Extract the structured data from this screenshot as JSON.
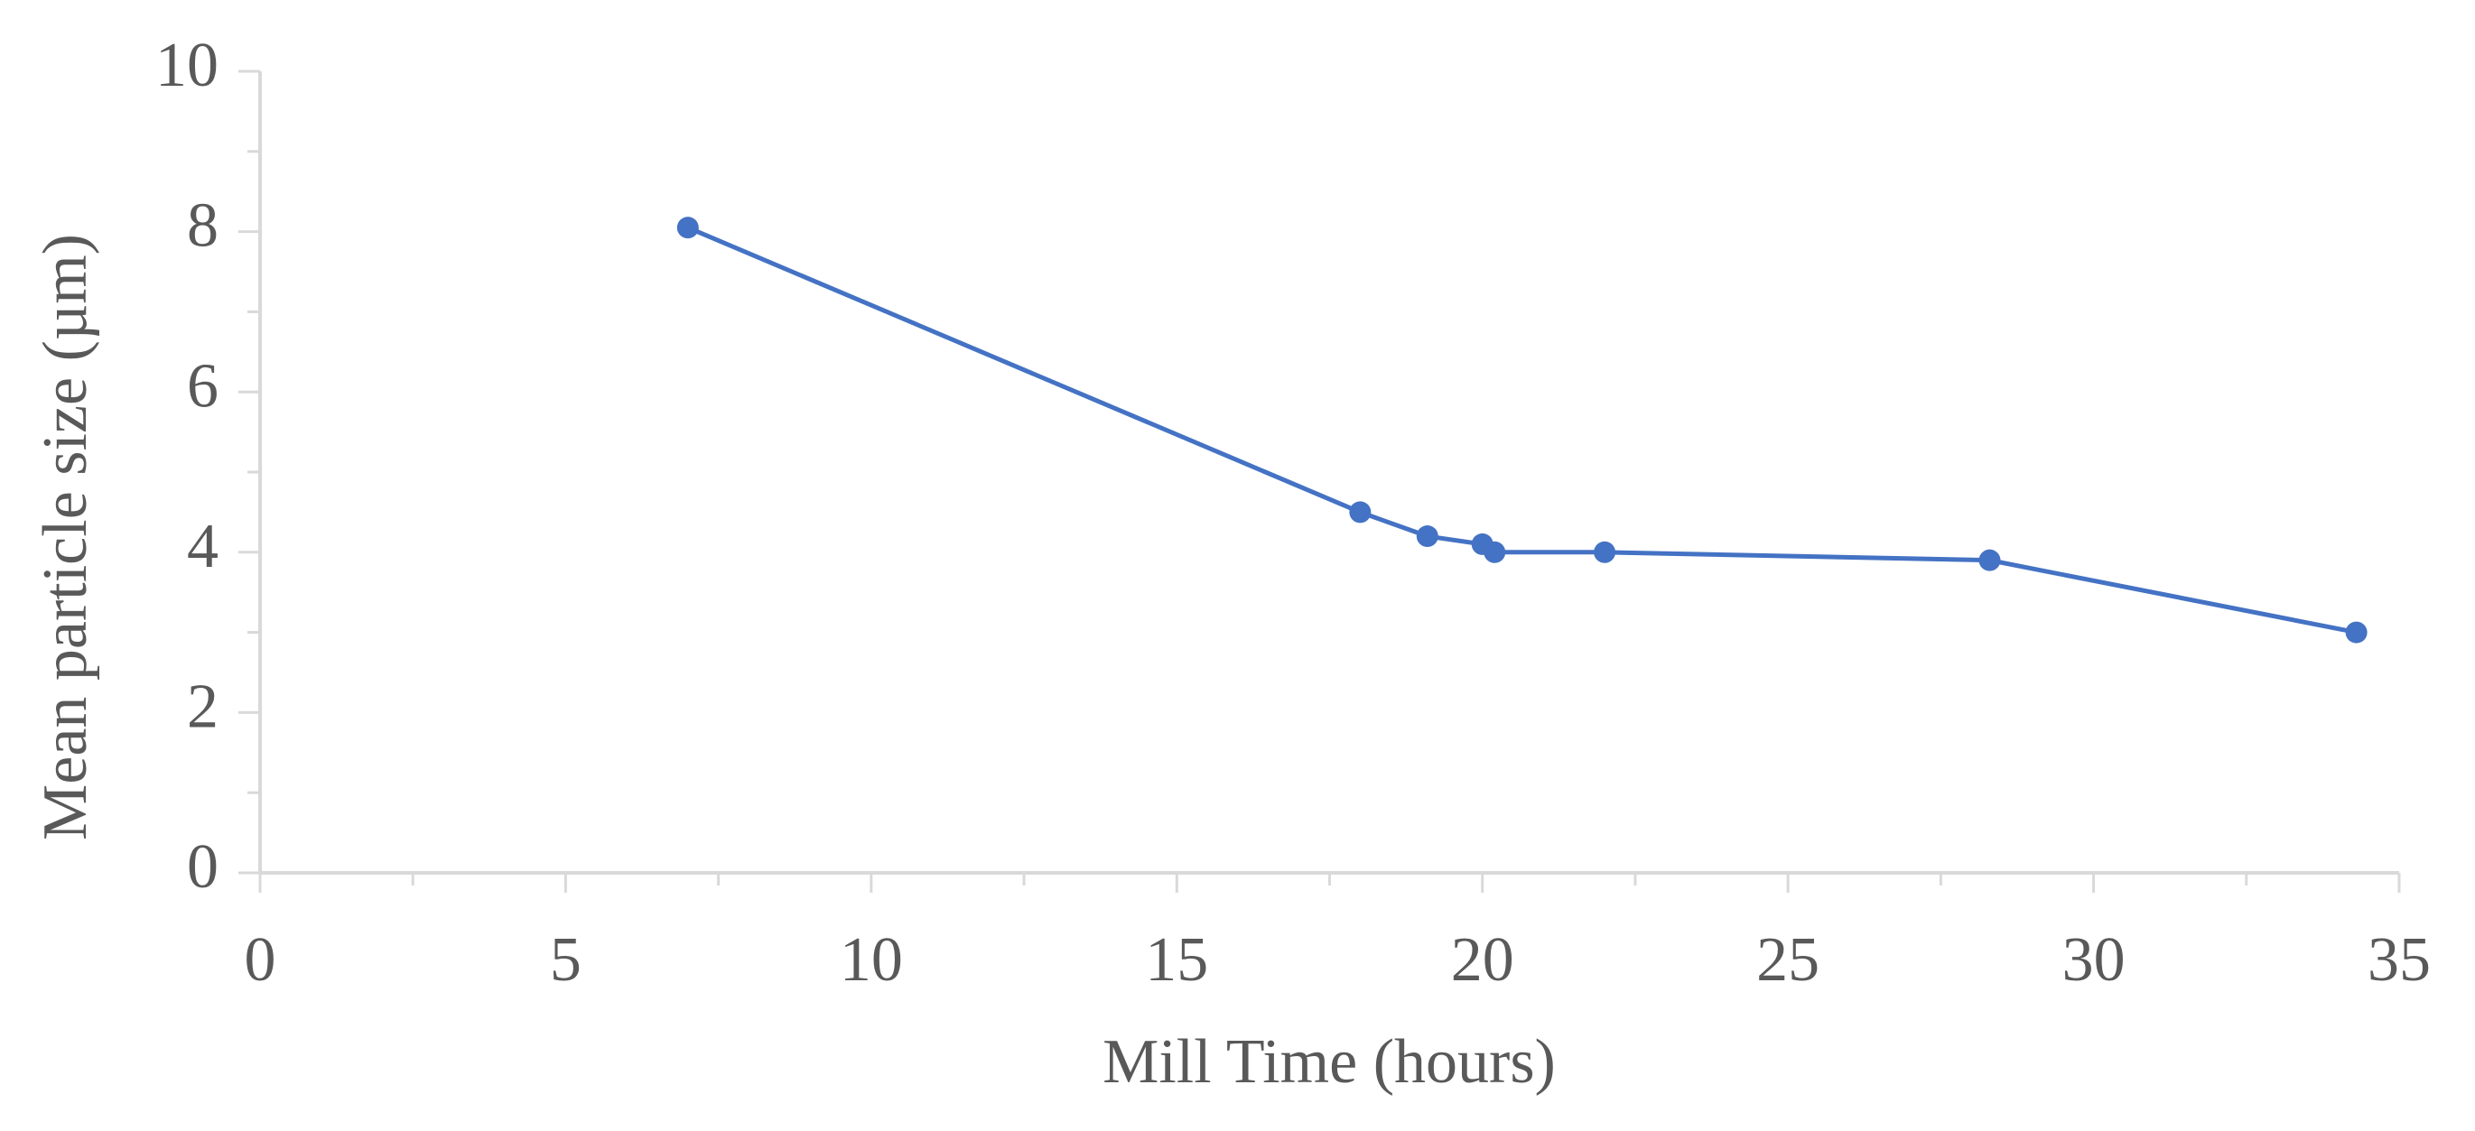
{
  "chart_data": {
    "type": "line",
    "x_label": "Mill Time (hours)",
    "y_label": "Mean particle size (µm)",
    "series": [
      {
        "name": "Mean particle size",
        "color": "#4472c4",
        "x": [
          7,
          18,
          19.1,
          20,
          20.2,
          22,
          28.3,
          34.3
        ],
        "values": [
          8.05,
          4.5,
          4.2,
          4.1,
          4.0,
          4.0,
          3.9,
          3.0
        ]
      }
    ],
    "xlim": [
      0,
      35
    ],
    "xticks": [
      0,
      5,
      10,
      15,
      20,
      25,
      30,
      35
    ],
    "ylim": [
      0,
      10
    ],
    "yticks": [
      0,
      2,
      4,
      6,
      8,
      10
    ],
    "grid": false,
    "markers": true
  }
}
